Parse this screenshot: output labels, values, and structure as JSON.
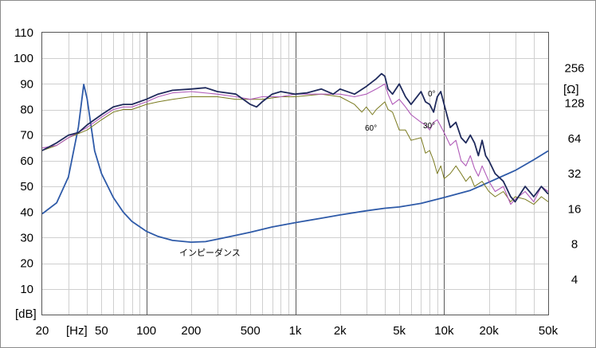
{
  "chart_data": {
    "type": "line",
    "x_scale": "log",
    "xlim": [
      20,
      50000
    ],
    "ylim_left": [
      0,
      110
    ],
    "ylim_right_ohm": [
      2,
      512
    ],
    "grid": true,
    "left_unit": "[dB]",
    "x_unit": "[Hz]",
    "right_unit": "[Ω]",
    "x_tick_labels": [
      {
        "v": 20,
        "t": "20"
      },
      {
        "v": 50,
        "t": "50"
      },
      {
        "v": 100,
        "t": "100"
      },
      {
        "v": 200,
        "t": "200"
      },
      {
        "v": 500,
        "t": "500"
      },
      {
        "v": 1000,
        "t": "1k"
      },
      {
        "v": 2000,
        "t": "2k"
      },
      {
        "v": 5000,
        "t": "5k"
      },
      {
        "v": 10000,
        "t": "10k"
      },
      {
        "v": 20000,
        "t": "20k"
      },
      {
        "v": 50000,
        "t": "50k"
      }
    ],
    "y_tick_labels": [
      "10",
      "20",
      "30",
      "40",
      "50",
      "60",
      "70",
      "80",
      "90",
      "100",
      "110"
    ],
    "y_right_ticks": [
      {
        "v": 4,
        "t": "4"
      },
      {
        "v": 8,
        "t": "8"
      },
      {
        "v": 16,
        "t": "16"
      },
      {
        "v": 32,
        "t": "32"
      },
      {
        "v": 64,
        "t": "64"
      },
      {
        "v": 128,
        "t": "128"
      },
      {
        "v": 256,
        "t": "256"
      }
    ],
    "annotations": {
      "deg0": "0°",
      "deg30": "30°",
      "deg60": "60°",
      "impedance": "インピーダンス"
    },
    "colors": {
      "deg0": "#1f2a5c",
      "deg30": "#b05ab8",
      "deg60": "#7a7a1f",
      "impedance": "#2e5aa8",
      "grid_minor": "#cfcfcf",
      "grid_major": "#5a5a5a"
    },
    "series": [
      {
        "key": "deg0",
        "unit": "dB",
        "points": [
          [
            20,
            64
          ],
          [
            25,
            67
          ],
          [
            30,
            70
          ],
          [
            35,
            71
          ],
          [
            40,
            74
          ],
          [
            50,
            78
          ],
          [
            60,
            81
          ],
          [
            70,
            82
          ],
          [
            80,
            82
          ],
          [
            100,
            84
          ],
          [
            120,
            86
          ],
          [
            150,
            87.5
          ],
          [
            200,
            88
          ],
          [
            250,
            88.5
          ],
          [
            300,
            87
          ],
          [
            400,
            86
          ],
          [
            500,
            82
          ],
          [
            550,
            81
          ],
          [
            600,
            83
          ],
          [
            700,
            86
          ],
          [
            800,
            87
          ],
          [
            1000,
            86
          ],
          [
            1200,
            86.5
          ],
          [
            1500,
            88
          ],
          [
            1800,
            86
          ],
          [
            2000,
            88
          ],
          [
            2500,
            86
          ],
          [
            3000,
            89
          ],
          [
            3500,
            92
          ],
          [
            3800,
            94
          ],
          [
            4000,
            93
          ],
          [
            4200,
            88
          ],
          [
            4500,
            86
          ],
          [
            5000,
            90
          ],
          [
            5500,
            85
          ],
          [
            6000,
            82
          ],
          [
            7000,
            87
          ],
          [
            7500,
            83
          ],
          [
            8000,
            82
          ],
          [
            8500,
            79
          ],
          [
            9000,
            85
          ],
          [
            9500,
            87
          ],
          [
            10000,
            82
          ],
          [
            11000,
            73
          ],
          [
            12000,
            75
          ],
          [
            13000,
            69
          ],
          [
            14000,
            67
          ],
          [
            15000,
            70
          ],
          [
            16000,
            67
          ],
          [
            17000,
            62
          ],
          [
            18000,
            68
          ],
          [
            19000,
            62
          ],
          [
            20000,
            60
          ],
          [
            22000,
            55
          ],
          [
            25000,
            52
          ],
          [
            28000,
            46
          ],
          [
            30000,
            44
          ],
          [
            35000,
            50
          ],
          [
            40000,
            46
          ],
          [
            45000,
            50
          ],
          [
            50000,
            47
          ]
        ]
      },
      {
        "key": "deg30",
        "unit": "dB",
        "points": [
          [
            20,
            65
          ],
          [
            25,
            66
          ],
          [
            30,
            69
          ],
          [
            40,
            73
          ],
          [
            50,
            77
          ],
          [
            60,
            80
          ],
          [
            70,
            81
          ],
          [
            80,
            81
          ],
          [
            100,
            83
          ],
          [
            120,
            85
          ],
          [
            150,
            86.5
          ],
          [
            200,
            87
          ],
          [
            300,
            86
          ],
          [
            400,
            85
          ],
          [
            500,
            84
          ],
          [
            600,
            85
          ],
          [
            800,
            85
          ],
          [
            1000,
            86
          ],
          [
            1500,
            86
          ],
          [
            2000,
            86
          ],
          [
            2500,
            85
          ],
          [
            3000,
            86
          ],
          [
            3500,
            88
          ],
          [
            4000,
            90
          ],
          [
            4200,
            86
          ],
          [
            4500,
            82
          ],
          [
            5000,
            84
          ],
          [
            5500,
            81
          ],
          [
            6000,
            78
          ],
          [
            7000,
            75
          ],
          [
            7500,
            74
          ],
          [
            8000,
            72
          ],
          [
            8500,
            75
          ],
          [
            9000,
            76
          ],
          [
            10000,
            71
          ],
          [
            11000,
            66
          ],
          [
            12000,
            68
          ],
          [
            13000,
            60
          ],
          [
            14000,
            58
          ],
          [
            15000,
            62
          ],
          [
            16000,
            57
          ],
          [
            17000,
            54
          ],
          [
            18000,
            58
          ],
          [
            20000,
            52
          ],
          [
            22000,
            48
          ],
          [
            25000,
            50
          ],
          [
            28000,
            43
          ],
          [
            30000,
            45
          ],
          [
            35000,
            48
          ],
          [
            40000,
            44
          ],
          [
            45000,
            50
          ],
          [
            50000,
            48
          ]
        ]
      },
      {
        "key": "deg60",
        "unit": "dB",
        "points": [
          [
            20,
            64
          ],
          [
            25,
            66
          ],
          [
            30,
            69
          ],
          [
            40,
            72
          ],
          [
            50,
            76
          ],
          [
            60,
            79
          ],
          [
            70,
            80
          ],
          [
            80,
            80
          ],
          [
            100,
            82
          ],
          [
            120,
            83
          ],
          [
            150,
            84
          ],
          [
            200,
            85
          ],
          [
            300,
            85
          ],
          [
            400,
            84
          ],
          [
            500,
            84
          ],
          [
            600,
            84
          ],
          [
            800,
            85
          ],
          [
            1000,
            85
          ],
          [
            1500,
            86
          ],
          [
            2000,
            85
          ],
          [
            2500,
            82
          ],
          [
            2800,
            79
          ],
          [
            3000,
            81
          ],
          [
            3300,
            78
          ],
          [
            3500,
            80
          ],
          [
            4000,
            83
          ],
          [
            4200,
            80
          ],
          [
            4500,
            79
          ],
          [
            5000,
            72
          ],
          [
            5500,
            72
          ],
          [
            6000,
            68
          ],
          [
            7000,
            69
          ],
          [
            7500,
            63
          ],
          [
            8000,
            64
          ],
          [
            8500,
            60
          ],
          [
            9000,
            55
          ],
          [
            9500,
            58
          ],
          [
            10000,
            53
          ],
          [
            11000,
            55
          ],
          [
            12000,
            58
          ],
          [
            13000,
            55
          ],
          [
            14000,
            52
          ],
          [
            15000,
            54
          ],
          [
            16000,
            50
          ],
          [
            18000,
            52
          ],
          [
            20000,
            48
          ],
          [
            22000,
            46
          ],
          [
            25000,
            48
          ],
          [
            28000,
            44
          ],
          [
            30000,
            46
          ],
          [
            35000,
            45
          ],
          [
            40000,
            43
          ],
          [
            45000,
            46
          ],
          [
            50000,
            44
          ]
        ]
      },
      {
        "key": "impedance",
        "unit": "ohm",
        "points": [
          [
            20,
            14.5
          ],
          [
            25,
            18
          ],
          [
            30,
            30
          ],
          [
            35,
            80
          ],
          [
            38,
            185
          ],
          [
            40,
            140
          ],
          [
            45,
            50
          ],
          [
            50,
            32
          ],
          [
            60,
            20
          ],
          [
            70,
            15
          ],
          [
            80,
            12.5
          ],
          [
            100,
            10.3
          ],
          [
            120,
            9.3
          ],
          [
            150,
            8.6
          ],
          [
            200,
            8.3
          ],
          [
            250,
            8.4
          ],
          [
            300,
            8.8
          ],
          [
            400,
            9.5
          ],
          [
            500,
            10.1
          ],
          [
            700,
            11.2
          ],
          [
            1000,
            12.2
          ],
          [
            1500,
            13.3
          ],
          [
            2000,
            14.2
          ],
          [
            3000,
            15.4
          ],
          [
            4000,
            16.2
          ],
          [
            5000,
            16.6
          ],
          [
            7000,
            17.8
          ],
          [
            10000,
            20
          ],
          [
            15000,
            23
          ],
          [
            20000,
            27
          ],
          [
            30000,
            34
          ],
          [
            40000,
            42
          ],
          [
            50000,
            50
          ]
        ]
      }
    ]
  }
}
